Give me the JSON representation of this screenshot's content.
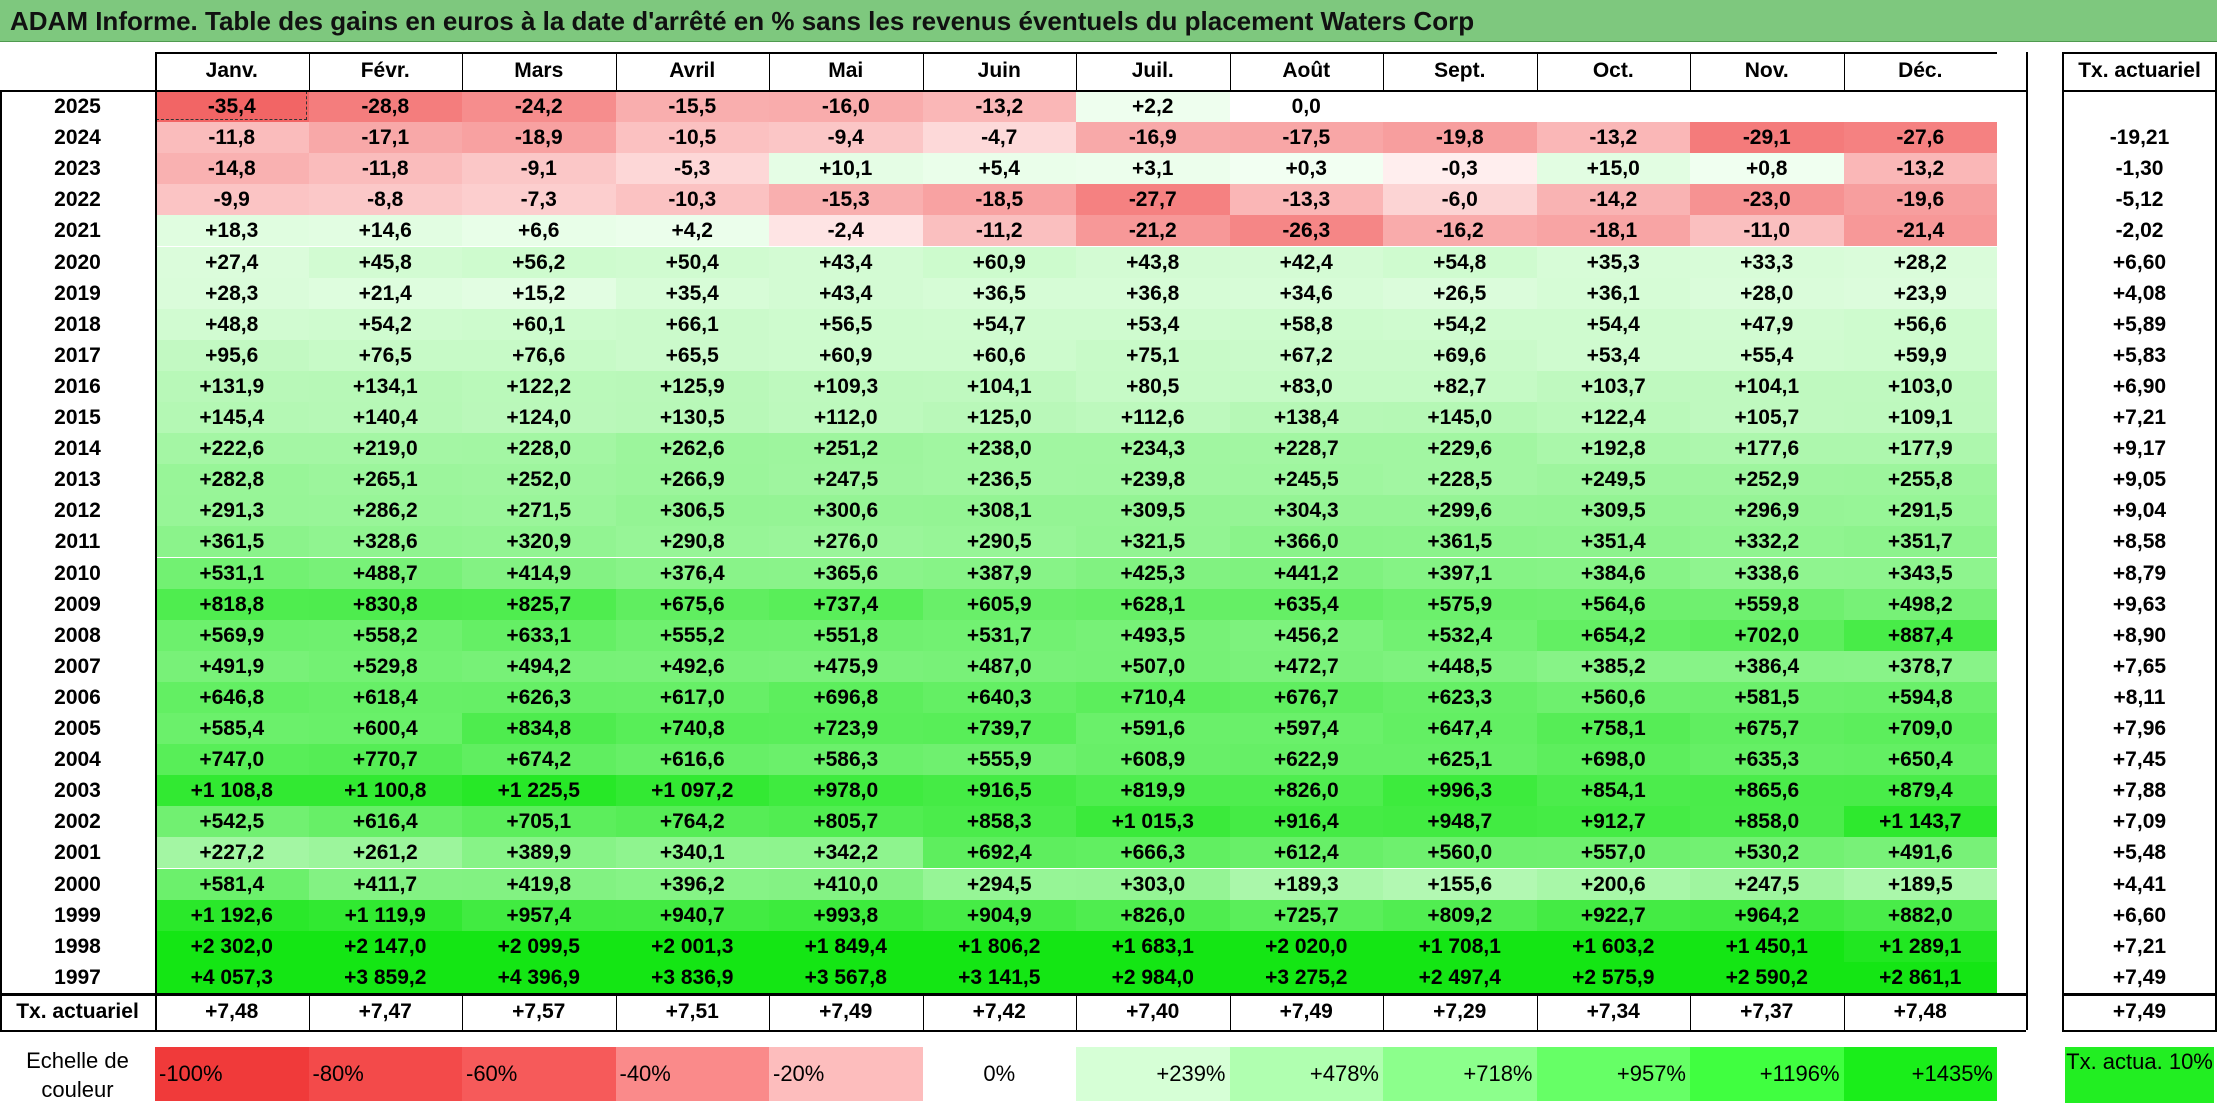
{
  "title": "ADAM Informe. Table des gains en euros à la date d'arrêté en % sans les revenus éventuels du placement Waters Corp",
  "chart_data": {
    "type": "table",
    "months": [
      "Janv.",
      "Févr.",
      "Mars",
      "Avril",
      "Mai",
      "Juin",
      "Juil.",
      "Août",
      "Sept.",
      "Oct.",
      "Nov.",
      "Déc."
    ],
    "rate_header": "Tx. actuariel",
    "rows": [
      {
        "year": "2025",
        "values": [
          "-35,4",
          "-28,8",
          "-24,2",
          "-15,5",
          "-16,0",
          "-13,2",
          "+2,2",
          "0,0",
          "",
          "",
          "",
          ""
        ],
        "rate": ""
      },
      {
        "year": "2024",
        "values": [
          "-11,8",
          "-17,1",
          "-18,9",
          "-10,5",
          "-9,4",
          "-4,7",
          "-16,9",
          "-17,5",
          "-19,8",
          "-13,2",
          "-29,1",
          "-27,6"
        ],
        "rate": "-19,21"
      },
      {
        "year": "2023",
        "values": [
          "-14,8",
          "-11,8",
          "-9,1",
          "-5,3",
          "+10,1",
          "+5,4",
          "+3,1",
          "+0,3",
          "-0,3",
          "+15,0",
          "+0,8",
          "-13,2"
        ],
        "rate": "-1,30"
      },
      {
        "year": "2022",
        "values": [
          "-9,9",
          "-8,8",
          "-7,3",
          "-10,3",
          "-15,3",
          "-18,5",
          "-27,7",
          "-13,3",
          "-6,0",
          "-14,2",
          "-23,0",
          "-19,6"
        ],
        "rate": "-5,12"
      },
      {
        "year": "2021",
        "values": [
          "+18,3",
          "+14,6",
          "+6,6",
          "+4,2",
          "-2,4",
          "-11,2",
          "-21,2",
          "-26,3",
          "-16,2",
          "-18,1",
          "-11,0",
          "-21,4"
        ],
        "rate": "-2,02"
      },
      {
        "year": "2020",
        "values": [
          "+27,4",
          "+45,8",
          "+56,2",
          "+50,4",
          "+43,4",
          "+60,9",
          "+43,8",
          "+42,4",
          "+54,8",
          "+35,3",
          "+33,3",
          "+28,2"
        ],
        "rate": "+6,60"
      },
      {
        "year": "2019",
        "values": [
          "+28,3",
          "+21,4",
          "+15,2",
          "+35,4",
          "+43,4",
          "+36,5",
          "+36,8",
          "+34,6",
          "+26,5",
          "+36,1",
          "+28,0",
          "+23,9"
        ],
        "rate": "+4,08"
      },
      {
        "year": "2018",
        "values": [
          "+48,8",
          "+54,2",
          "+60,1",
          "+66,1",
          "+56,5",
          "+54,7",
          "+53,4",
          "+58,8",
          "+54,2",
          "+54,4",
          "+47,9",
          "+56,6"
        ],
        "rate": "+5,89"
      },
      {
        "year": "2017",
        "values": [
          "+95,6",
          "+76,5",
          "+76,6",
          "+65,5",
          "+60,9",
          "+60,6",
          "+75,1",
          "+67,2",
          "+69,6",
          "+53,4",
          "+55,4",
          "+59,9"
        ],
        "rate": "+5,83"
      },
      {
        "year": "2016",
        "values": [
          "+131,9",
          "+134,1",
          "+122,2",
          "+125,9",
          "+109,3",
          "+104,1",
          "+80,5",
          "+83,0",
          "+82,7",
          "+103,7",
          "+104,1",
          "+103,0"
        ],
        "rate": "+6,90"
      },
      {
        "year": "2015",
        "values": [
          "+145,4",
          "+140,4",
          "+124,0",
          "+130,5",
          "+112,0",
          "+125,0",
          "+112,6",
          "+138,4",
          "+145,0",
          "+122,4",
          "+105,7",
          "+109,1"
        ],
        "rate": "+7,21"
      },
      {
        "year": "2014",
        "values": [
          "+222,6",
          "+219,0",
          "+228,0",
          "+262,6",
          "+251,2",
          "+238,0",
          "+234,3",
          "+228,7",
          "+229,6",
          "+192,8",
          "+177,6",
          "+177,9"
        ],
        "rate": "+9,17"
      },
      {
        "year": "2013",
        "values": [
          "+282,8",
          "+265,1",
          "+252,0",
          "+266,9",
          "+247,5",
          "+236,5",
          "+239,8",
          "+245,5",
          "+228,5",
          "+249,5",
          "+252,9",
          "+255,8"
        ],
        "rate": "+9,05"
      },
      {
        "year": "2012",
        "values": [
          "+291,3",
          "+286,2",
          "+271,5",
          "+306,5",
          "+300,6",
          "+308,1",
          "+309,5",
          "+304,3",
          "+299,6",
          "+309,5",
          "+296,9",
          "+291,5"
        ],
        "rate": "+9,04"
      },
      {
        "year": "2011",
        "values": [
          "+361,5",
          "+328,6",
          "+320,9",
          "+290,8",
          "+276,0",
          "+290,5",
          "+321,5",
          "+366,0",
          "+361,5",
          "+351,4",
          "+332,2",
          "+351,7"
        ],
        "rate": "+8,58"
      },
      {
        "year": "2010",
        "values": [
          "+531,1",
          "+488,7",
          "+414,9",
          "+376,4",
          "+365,6",
          "+387,9",
          "+425,3",
          "+441,2",
          "+397,1",
          "+384,6",
          "+338,6",
          "+343,5"
        ],
        "rate": "+8,79"
      },
      {
        "year": "2009",
        "values": [
          "+818,8",
          "+830,8",
          "+825,7",
          "+675,6",
          "+737,4",
          "+605,9",
          "+628,1",
          "+635,4",
          "+575,9",
          "+564,6",
          "+559,8",
          "+498,2"
        ],
        "rate": "+9,63"
      },
      {
        "year": "2008",
        "values": [
          "+569,9",
          "+558,2",
          "+633,1",
          "+555,2",
          "+551,8",
          "+531,7",
          "+493,5",
          "+456,2",
          "+532,4",
          "+654,2",
          "+702,0",
          "+887,4"
        ],
        "rate": "+8,90"
      },
      {
        "year": "2007",
        "values": [
          "+491,9",
          "+529,8",
          "+494,2",
          "+492,6",
          "+475,9",
          "+487,0",
          "+507,0",
          "+472,7",
          "+448,5",
          "+385,2",
          "+386,4",
          "+378,7"
        ],
        "rate": "+7,65"
      },
      {
        "year": "2006",
        "values": [
          "+646,8",
          "+618,4",
          "+626,3",
          "+617,0",
          "+696,8",
          "+640,3",
          "+710,4",
          "+676,7",
          "+623,3",
          "+560,6",
          "+581,5",
          "+594,8"
        ],
        "rate": "+8,11"
      },
      {
        "year": "2005",
        "values": [
          "+585,4",
          "+600,4",
          "+834,8",
          "+740,8",
          "+723,9",
          "+739,7",
          "+591,6",
          "+597,4",
          "+647,4",
          "+758,1",
          "+675,7",
          "+709,0"
        ],
        "rate": "+7,96"
      },
      {
        "year": "2004",
        "values": [
          "+747,0",
          "+770,7",
          "+674,2",
          "+616,6",
          "+586,3",
          "+555,9",
          "+608,9",
          "+622,9",
          "+625,1",
          "+698,0",
          "+635,3",
          "+650,4"
        ],
        "rate": "+7,45"
      },
      {
        "year": "2003",
        "values": [
          "+1 108,8",
          "+1 100,8",
          "+1 225,5",
          "+1 097,2",
          "+978,0",
          "+916,5",
          "+819,9",
          "+826,0",
          "+996,3",
          "+854,1",
          "+865,6",
          "+879,4"
        ],
        "rate": "+7,88"
      },
      {
        "year": "2002",
        "values": [
          "+542,5",
          "+616,4",
          "+705,1",
          "+764,2",
          "+805,7",
          "+858,3",
          "+1 015,3",
          "+916,4",
          "+948,7",
          "+912,7",
          "+858,0",
          "+1 143,7"
        ],
        "rate": "+7,09"
      },
      {
        "year": "2001",
        "values": [
          "+227,2",
          "+261,2",
          "+389,9",
          "+340,1",
          "+342,2",
          "+692,4",
          "+666,3",
          "+612,4",
          "+560,0",
          "+557,0",
          "+530,2",
          "+491,6"
        ],
        "rate": "+5,48"
      },
      {
        "year": "2000",
        "values": [
          "+581,4",
          "+411,7",
          "+419,8",
          "+396,2",
          "+410,0",
          "+294,5",
          "+303,0",
          "+189,3",
          "+155,6",
          "+200,6",
          "+247,5",
          "+189,5"
        ],
        "rate": "+4,41"
      },
      {
        "year": "1999",
        "values": [
          "+1 192,6",
          "+1 119,9",
          "+957,4",
          "+940,7",
          "+993,8",
          "+904,9",
          "+826,0",
          "+725,7",
          "+809,2",
          "+922,7",
          "+964,2",
          "+882,0"
        ],
        "rate": "+6,60"
      },
      {
        "year": "1998",
        "values": [
          "+2 302,0",
          "+2 147,0",
          "+2 099,5",
          "+2 001,3",
          "+1 849,4",
          "+1 806,2",
          "+1 683,1",
          "+2 020,0",
          "+1 708,1",
          "+1 603,2",
          "+1 450,1",
          "+1 289,1"
        ],
        "rate": "+7,21"
      },
      {
        "year": "1997",
        "values": [
          "+4 057,3",
          "+3 859,2",
          "+4 396,9",
          "+3 836,9",
          "+3 567,8",
          "+3 141,5",
          "+2 984,0",
          "+3 275,2",
          "+2 497,4",
          "+2 575,9",
          "+2 590,2",
          "+2 861,1"
        ],
        "rate": "+7,49"
      }
    ],
    "footer": {
      "label": "Tx. actuariel",
      "values": [
        "+7,48",
        "+7,47",
        "+7,57",
        "+7,51",
        "+7,49",
        "+7,42",
        "+7,40",
        "+7,49",
        "+7,29",
        "+7,34",
        "+7,37",
        "+7,48"
      ],
      "rate": "+7,49"
    },
    "scale": {
      "label": "Echelle de couleur",
      "items": [
        {
          "text": "-100%",
          "color": "#f03a3a",
          "align": "left"
        },
        {
          "text": "-80%",
          "color": "#f34a4a",
          "align": "left"
        },
        {
          "text": "-60%",
          "color": "#f65a5a",
          "align": "left"
        },
        {
          "text": "-40%",
          "color": "#fa8a8a",
          "align": "left"
        },
        {
          "text": "-20%",
          "color": "#fdbdbd",
          "align": "left"
        },
        {
          "text": "0%",
          "color": "#ffffff",
          "align": "center"
        },
        {
          "text": "+239%",
          "color": "#d6ffd6",
          "align": "right"
        },
        {
          "text": "+478%",
          "color": "#b0ffb0",
          "align": "right"
        },
        {
          "text": "+718%",
          "color": "#8cff8c",
          "align": "right"
        },
        {
          "text": "+957%",
          "color": "#66ff66",
          "align": "right"
        },
        {
          "text": "+1196%",
          "color": "#40ff40",
          "align": "right"
        },
        {
          "text": "+1435%",
          "color": "#1aee1a",
          "align": "right"
        }
      ],
      "rate_text": "Tx. actua. 10%",
      "rate_color": "#22ee22"
    },
    "color_rules": {
      "negative_min": -35.4,
      "positive_max": 1435,
      "negative_color_full": "#f26565",
      "positive_color_full": "#14e614",
      "neutral": "#ffffff"
    }
  }
}
